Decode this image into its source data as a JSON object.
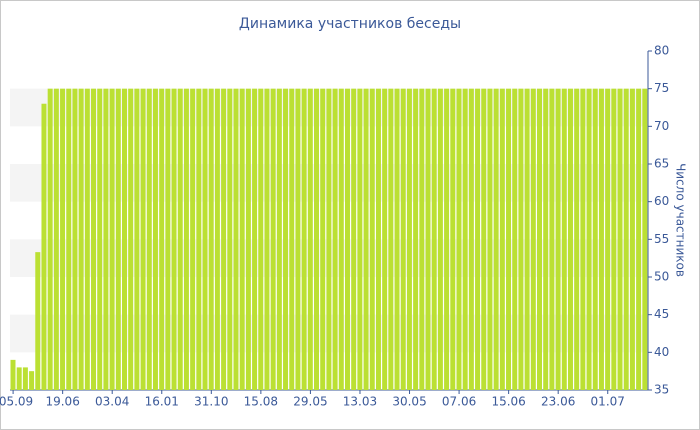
{
  "chart_data": {
    "type": "bar",
    "title": "Динамика участников беседы",
    "y_axis_label": "Число участников",
    "color": "#bbe033",
    "categories": [
      "05.09",
      null,
      null,
      null,
      null,
      null,
      null,
      null,
      "19.06",
      null,
      null,
      null,
      null,
      null,
      null,
      null,
      "03.04",
      null,
      null,
      null,
      null,
      null,
      null,
      null,
      "16.01",
      null,
      null,
      null,
      null,
      null,
      null,
      null,
      "31.10",
      null,
      null,
      null,
      null,
      null,
      null,
      null,
      "15.08",
      null,
      null,
      null,
      null,
      null,
      null,
      null,
      "29.05",
      null,
      null,
      null,
      null,
      null,
      null,
      null,
      "13.03",
      null,
      null,
      null,
      null,
      null,
      null,
      null,
      "30.05",
      null,
      null,
      null,
      null,
      null,
      null,
      null,
      "07.06",
      null,
      null,
      null,
      null,
      null,
      null,
      null,
      "15.06",
      null,
      null,
      null,
      null,
      null,
      null,
      null,
      "23.06",
      null,
      null,
      null,
      null,
      null,
      null,
      null,
      "01.07",
      null,
      null,
      null,
      null,
      null,
      null
    ],
    "values": [
      39,
      38,
      38,
      37.5,
      53.3,
      73,
      75,
      75,
      75,
      75,
      75,
      75,
      75,
      75,
      75,
      75,
      75,
      75,
      75,
      75,
      75,
      75,
      75,
      75,
      75,
      75,
      75,
      75,
      75,
      75,
      75,
      75,
      75,
      75,
      75,
      75,
      75,
      75,
      75,
      75,
      75,
      75,
      75,
      75,
      75,
      75,
      75,
      75,
      75,
      75,
      75,
      75,
      75,
      75,
      75,
      75,
      75,
      75,
      75,
      75,
      75,
      75,
      75,
      75,
      75,
      75,
      75,
      75,
      75,
      75,
      75,
      75,
      75,
      75,
      75,
      75,
      75,
      75,
      75,
      75,
      75,
      75,
      75,
      75,
      75,
      75,
      75,
      75,
      75,
      75,
      75,
      75,
      75,
      75,
      75,
      75,
      75,
      75,
      75,
      75,
      75,
      75,
      75
    ],
    "ylim": [
      35,
      80
    ],
    "yticks": [
      35,
      40,
      45,
      50,
      55,
      60,
      65,
      70,
      75,
      80
    ],
    "y_axis_side": "right",
    "grid_bands": true
  }
}
